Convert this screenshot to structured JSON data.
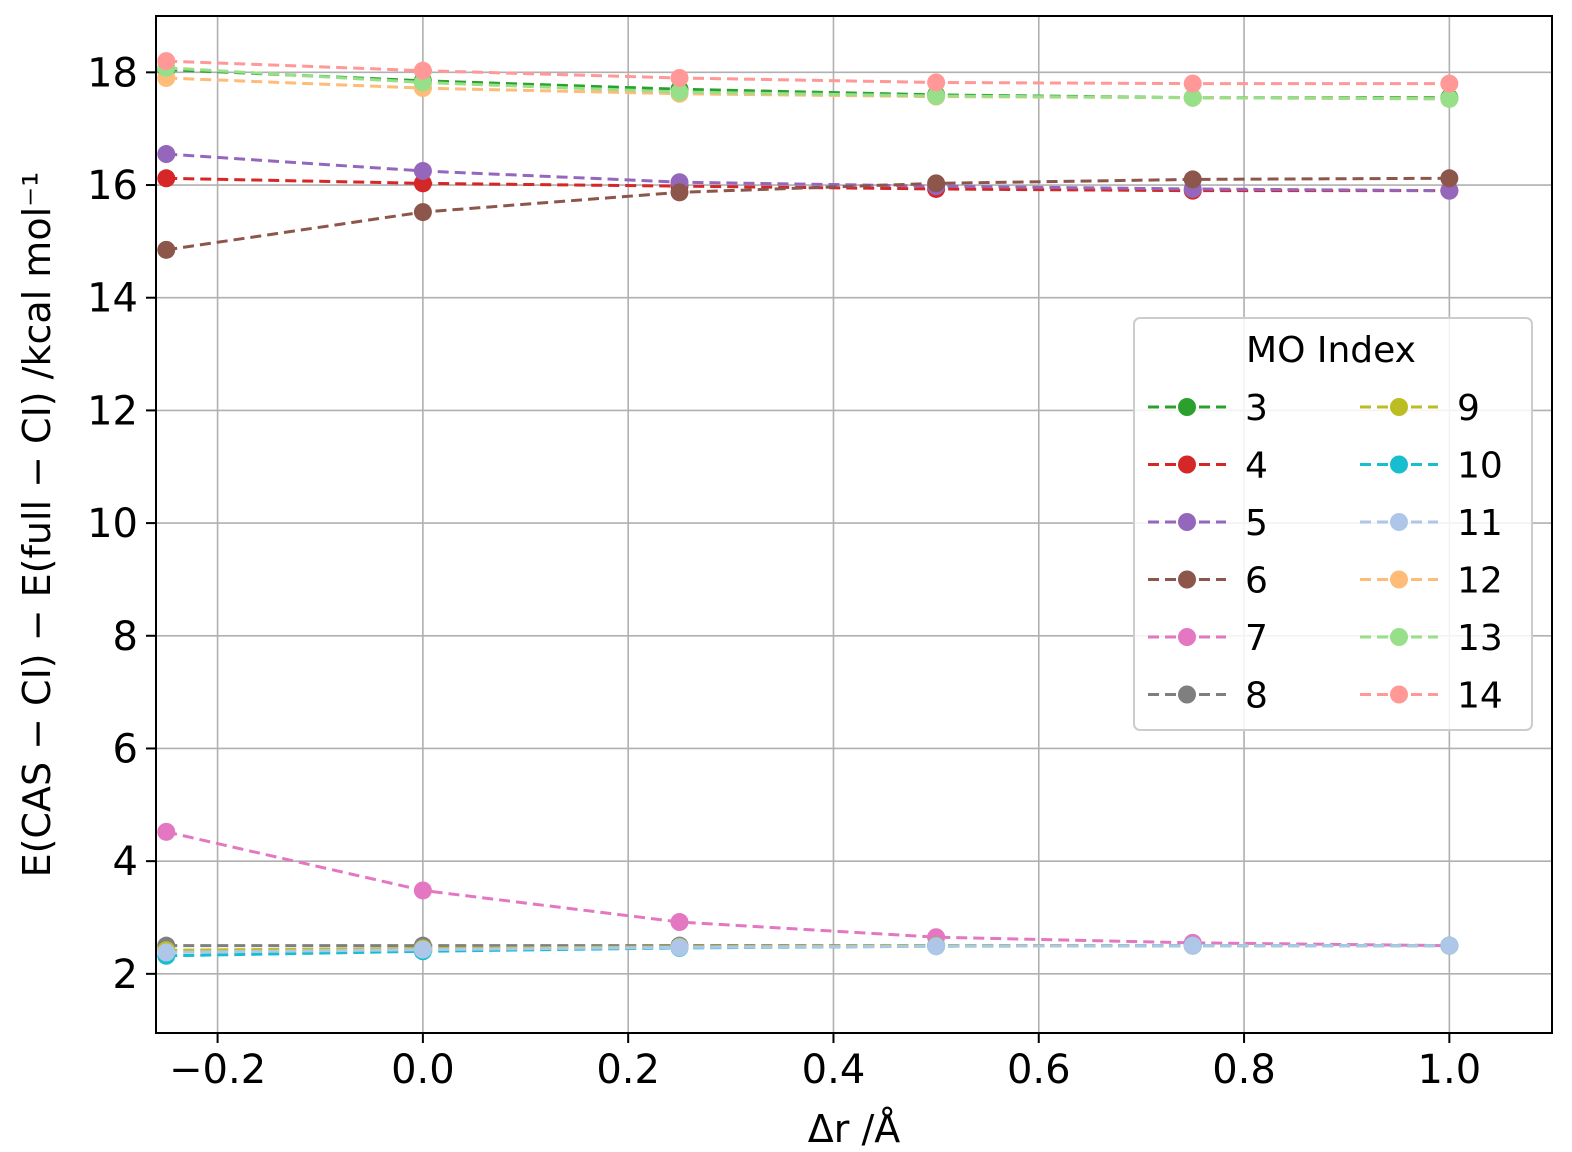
{
  "chart_data": {
    "type": "line",
    "title": "",
    "xlabel": "Δr /Å",
    "ylabel": "E(CAS − CI) − E(full − CI) /kcal mol⁻¹",
    "xlim": [
      -0.26,
      1.1
    ],
    "ylim": [
      0.95,
      19.0
    ],
    "grid": true,
    "x_ticks": [
      -0.2,
      0.0,
      0.2,
      0.4,
      0.6,
      0.8,
      1.0
    ],
    "x_tick_labels": [
      "−0.2",
      "0.0",
      "0.2",
      "0.4",
      "0.6",
      "0.8",
      "1.0"
    ],
    "y_ticks": [
      2,
      4,
      6,
      8,
      10,
      12,
      14,
      16,
      18
    ],
    "y_tick_labels": [
      "2",
      "4",
      "6",
      "8",
      "10",
      "12",
      "14",
      "16",
      "18"
    ],
    "x": [
      -0.25,
      0.0,
      0.25,
      0.5,
      0.75,
      1.0
    ],
    "legend": {
      "title": "MO Index",
      "placement": "center-right",
      "columns": 2
    },
    "series": [
      {
        "name": "3",
        "color": "#2ca02c",
        "values": [
          18.05,
          17.85,
          17.7,
          17.6,
          17.55,
          17.55
        ]
      },
      {
        "name": "4",
        "color": "#d62728",
        "values": [
          16.12,
          16.03,
          15.98,
          15.93,
          15.9,
          15.9
        ]
      },
      {
        "name": "5",
        "color": "#9467bd",
        "values": [
          16.55,
          16.25,
          16.05,
          15.98,
          15.93,
          15.9
        ]
      },
      {
        "name": "6",
        "color": "#8c564b",
        "values": [
          14.85,
          15.52,
          15.87,
          16.03,
          16.1,
          16.12
        ]
      },
      {
        "name": "7",
        "color": "#e377c2",
        "values": [
          4.52,
          3.48,
          2.92,
          2.65,
          2.55,
          2.5
        ]
      },
      {
        "name": "8",
        "color": "#7f7f7f",
        "values": [
          2.5,
          2.5,
          2.5,
          2.5,
          2.5,
          2.5
        ]
      },
      {
        "name": "9",
        "color": "#bcbd22",
        "values": [
          2.42,
          2.45,
          2.48,
          2.5,
          2.5,
          2.5
        ]
      },
      {
        "name": "10",
        "color": "#17becf",
        "values": [
          2.32,
          2.4,
          2.46,
          2.49,
          2.5,
          2.5
        ]
      },
      {
        "name": "11",
        "color": "#aec7e8",
        "values": [
          2.38,
          2.43,
          2.47,
          2.49,
          2.5,
          2.5
        ]
      },
      {
        "name": "12",
        "color": "#ffbb78",
        "values": [
          17.9,
          17.72,
          17.62,
          17.57,
          17.55,
          17.53
        ]
      },
      {
        "name": "13",
        "color": "#98df8a",
        "values": [
          18.08,
          17.82,
          17.65,
          17.58,
          17.55,
          17.53
        ]
      },
      {
        "name": "14",
        "color": "#ff9896",
        "values": [
          18.2,
          18.03,
          17.9,
          17.82,
          17.8,
          17.8
        ]
      }
    ]
  }
}
